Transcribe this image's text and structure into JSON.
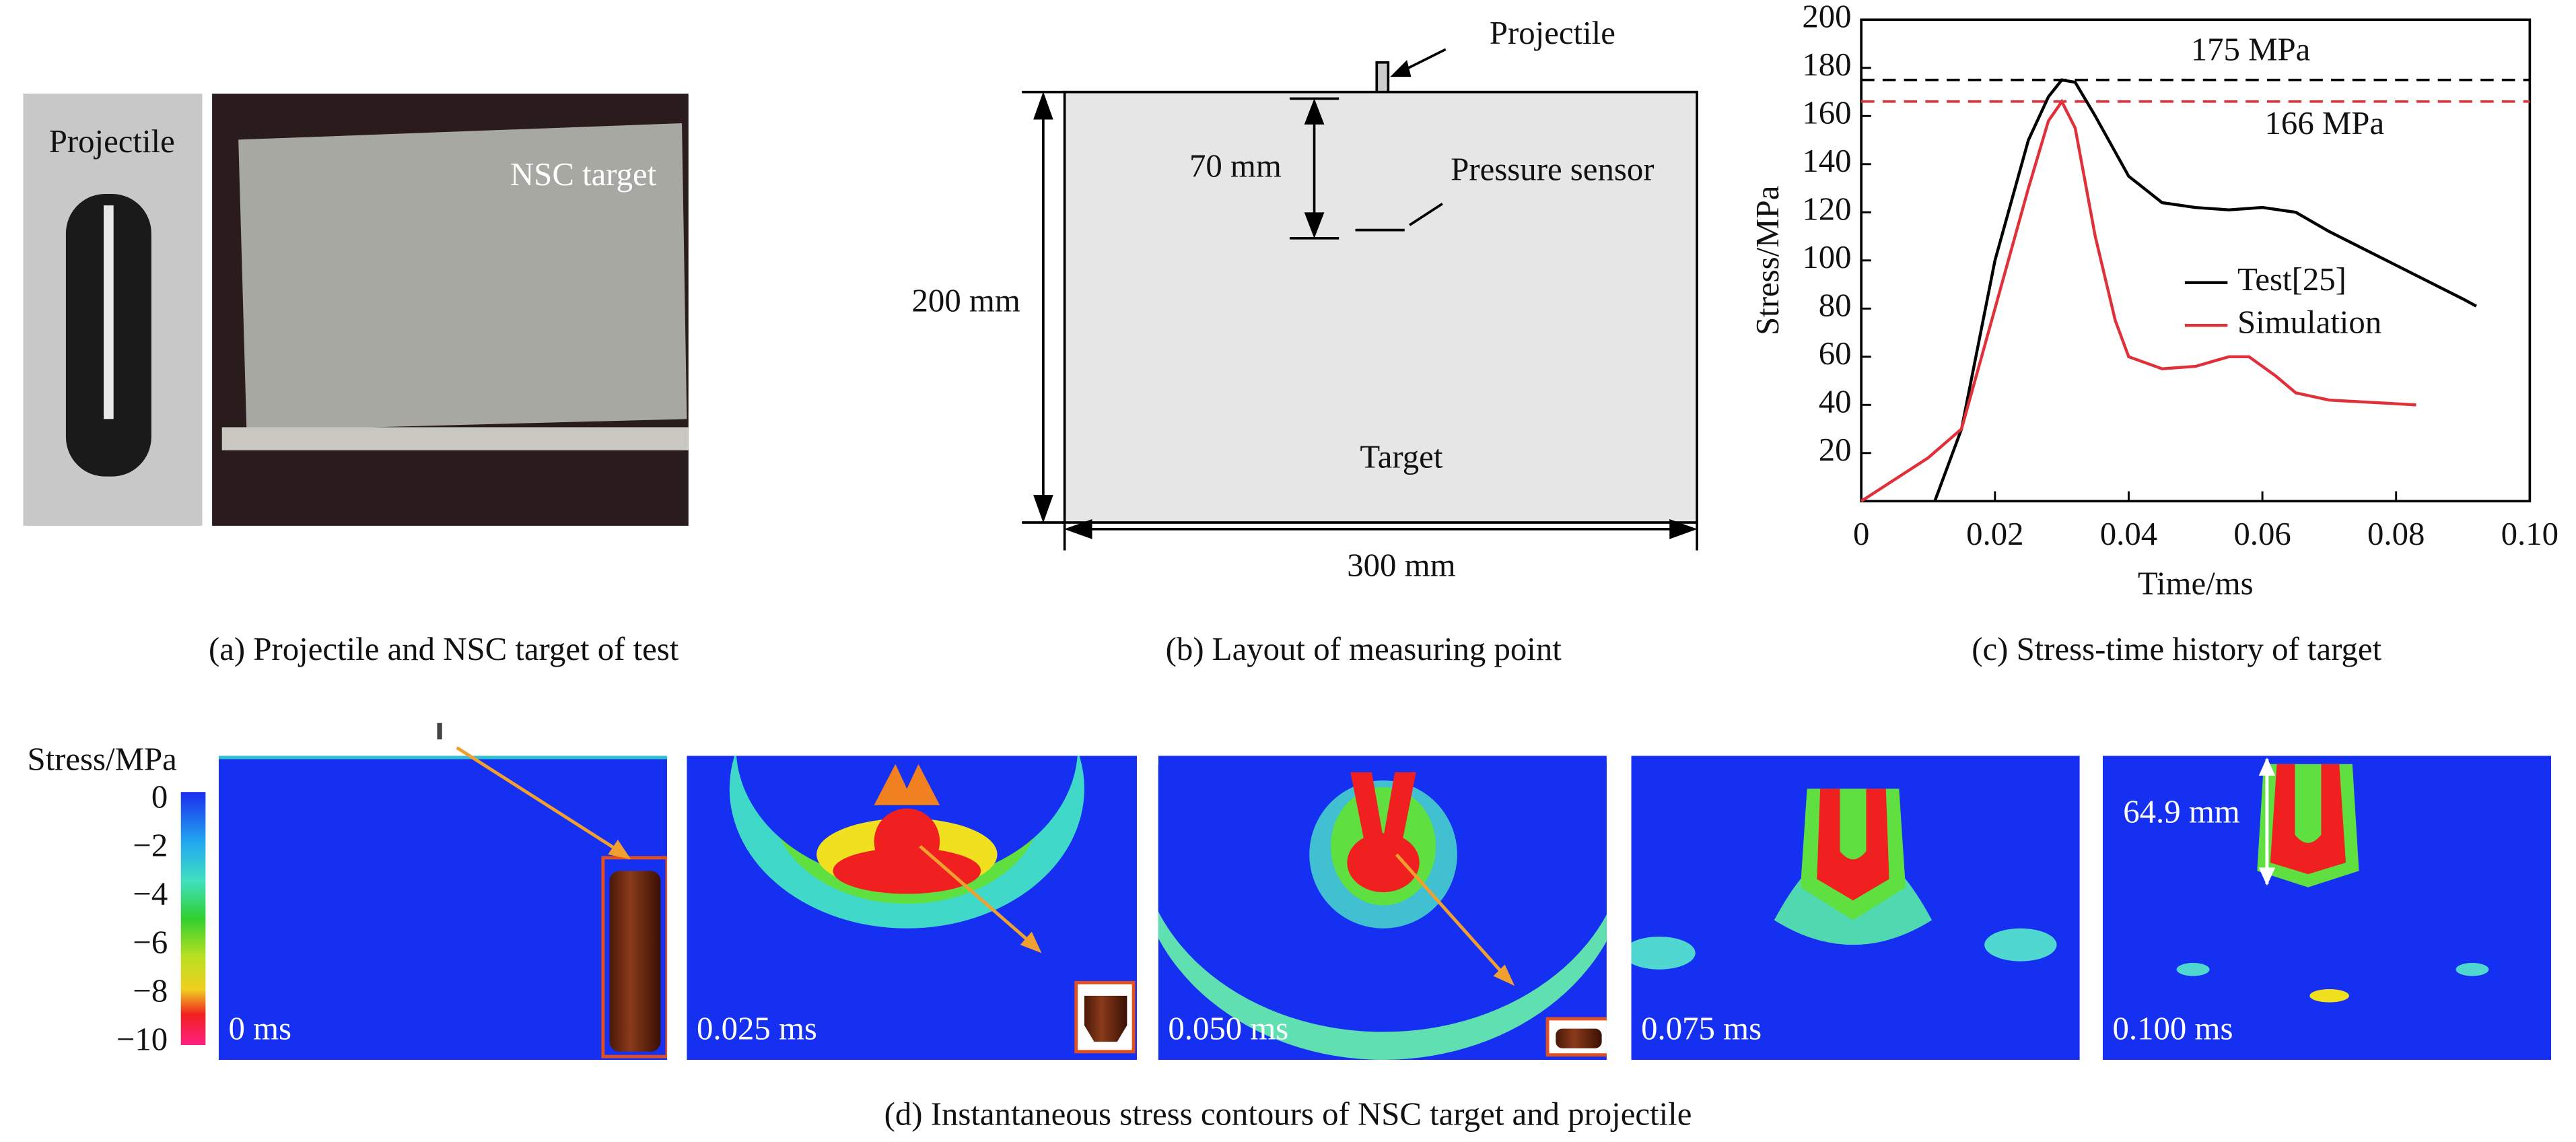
{
  "panel_a": {
    "projectile_label": "Projectile",
    "target_label": "NSC target",
    "caption": "(a) Projectile and NSC target of test"
  },
  "panel_b": {
    "projectile": "Projectile",
    "depth": "70 mm",
    "sensor": "Pressure sensor",
    "height": "200 mm",
    "target": "Target",
    "width": "300 mm",
    "caption": "(b) Layout of measuring point"
  },
  "chart_data": {
    "type": "line",
    "caption": "(c) Stress-time history of target",
    "xlabel": "Time/ms",
    "ylabel": "Stress/MPa",
    "xlim": [
      0,
      0.1
    ],
    "ylim": [
      0,
      200
    ],
    "xticks": [
      0,
      0.02,
      0.04,
      0.06,
      0.08,
      {
        "value": 0.1,
        "label": "0.10"
      }
    ],
    "yticks": [
      20,
      40,
      60,
      80,
      100,
      120,
      140,
      160,
      180,
      200
    ],
    "reference_lines": [
      {
        "value": 175,
        "label": "175 MPa",
        "color": "#000000"
      },
      {
        "value": 166,
        "label": "166 MPa",
        "color": "#e0303a"
      }
    ],
    "series": [
      {
        "name": "Test[25]",
        "color": "#000000",
        "x": [
          0.011,
          0.015,
          0.02,
          0.025,
          0.028,
          0.03,
          0.032,
          0.035,
          0.04,
          0.045,
          0.05,
          0.055,
          0.06,
          0.065,
          0.07,
          0.08,
          0.09,
          0.092
        ],
        "values": [
          0,
          30,
          100,
          150,
          168,
          175,
          174,
          160,
          135,
          124,
          122,
          121,
          122,
          120,
          112,
          98,
          84,
          81
        ]
      },
      {
        "name": "Simulation",
        "color": "#e0303a",
        "x": [
          0,
          0.01,
          0.015,
          0.02,
          0.025,
          0.028,
          0.03,
          0.032,
          0.035,
          0.038,
          0.04,
          0.045,
          0.05,
          0.055,
          0.058,
          0.062,
          0.065,
          0.07,
          0.083
        ],
        "values": [
          0,
          18,
          30,
          80,
          130,
          158,
          166,
          155,
          110,
          75,
          60,
          55,
          56,
          60,
          60,
          52,
          45,
          42,
          40
        ]
      }
    ]
  },
  "panel_d": {
    "colorbar_title": "Stress/MPa",
    "colorbar_ticks": [
      "0",
      "−2",
      "−4",
      "−6",
      "−8",
      "−10"
    ],
    "frame_labels": [
      "0 ms",
      "0.025 ms",
      "0.050 ms",
      "0.075 ms",
      "0.100 ms"
    ],
    "annotation": "64.9 mm",
    "caption": "(d) Instantaneous stress contours of NSC target and projectile"
  }
}
